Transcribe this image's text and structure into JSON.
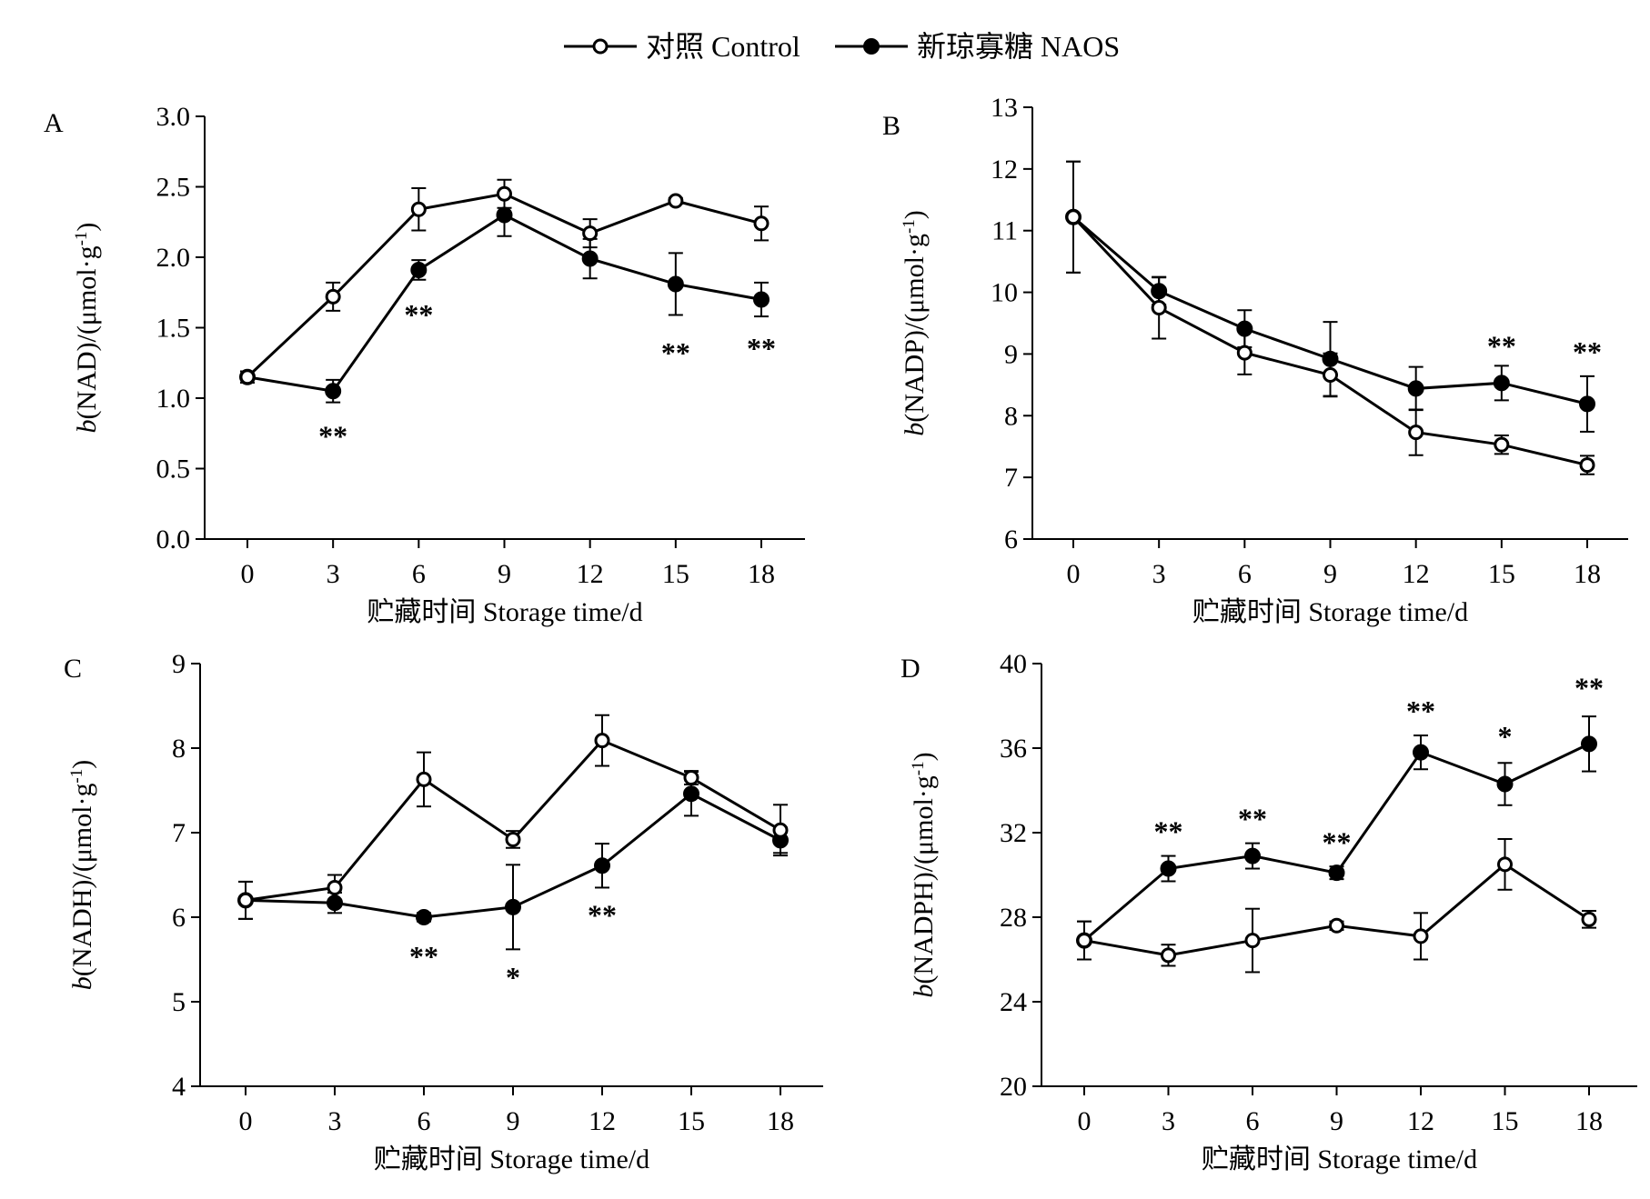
{
  "legend": {
    "control": "对照 Control",
    "naos": "新琼寡糖 NAOS"
  },
  "chart_data": [
    {
      "type": "line",
      "panel": "A",
      "xlabel": "贮藏时间 Storage time/d",
      "ylabel_prefix": "b",
      "ylabel_body": "(NAD)/(μmol·g",
      "ylabel_sup": "-1",
      "ylabel_suffix": ")",
      "ylim": [
        0,
        3
      ],
      "yticks": [
        "0.0",
        "0.5",
        "1.0",
        "1.5",
        "2.0",
        "2.5",
        "3.0"
      ],
      "x": [
        0,
        3,
        6,
        9,
        12,
        15,
        18
      ],
      "series": [
        {
          "name": "对照 Control",
          "marker": "open",
          "values": [
            1.15,
            1.72,
            2.34,
            2.45,
            2.17,
            2.4,
            2.24
          ],
          "errors": [
            0.04,
            0.1,
            0.15,
            0.1,
            0.1,
            0.02,
            0.12
          ]
        },
        {
          "name": "新琼寡糖 NAOS",
          "marker": "filled",
          "values": [
            1.15,
            1.05,
            1.91,
            2.3,
            1.99,
            1.81,
            1.7
          ],
          "errors": [
            0.04,
            0.08,
            0.07,
            0.15,
            0.14,
            0.22,
            0.12
          ]
        }
      ],
      "significance": [
        {
          "x": 3,
          "label": "**",
          "y": 0.74
        },
        {
          "x": 6,
          "label": "**",
          "y": 1.6
        },
        {
          "x": 15,
          "label": "**",
          "y": 1.33
        },
        {
          "x": 18,
          "label": "**",
          "y": 1.36
        }
      ]
    },
    {
      "type": "line",
      "panel": "B",
      "xlabel": "贮藏时间 Storage time/d",
      "ylabel_prefix": "b",
      "ylabel_body": "(NADP)/(μmol·g",
      "ylabel_sup": "-1",
      "ylabel_suffix": ")",
      "ylim": [
        6,
        13
      ],
      "yticks": [
        "6",
        "7",
        "8",
        "9",
        "10",
        "11",
        "12",
        "13"
      ],
      "x": [
        0,
        3,
        6,
        9,
        12,
        15,
        18
      ],
      "series": [
        {
          "name": "对照 Control",
          "marker": "open",
          "values": [
            11.22,
            9.75,
            9.02,
            8.66,
            7.73,
            7.53,
            7.2
          ],
          "errors": [
            0.9,
            0.5,
            0.35,
            0.35,
            0.37,
            0.15,
            0.15
          ]
        },
        {
          "name": "新琼寡糖 NAOS",
          "marker": "filled",
          "values": [
            11.22,
            10.02,
            9.41,
            8.92,
            8.44,
            8.53,
            8.19
          ],
          "errors": [
            0.9,
            0.22,
            0.3,
            0.6,
            0.35,
            0.28,
            0.45
          ]
        }
      ],
      "significance": [
        {
          "x": 15,
          "label": "**",
          "y": 9.15
        },
        {
          "x": 18,
          "label": "**",
          "y": 9.05
        }
      ]
    },
    {
      "type": "line",
      "panel": "C",
      "xlabel": "贮藏时间 Storage time/d",
      "ylabel_prefix": "b",
      "ylabel_body": "(NADH)/(μmol·g",
      "ylabel_sup": "-1",
      "ylabel_suffix": ")",
      "ylim": [
        4,
        9
      ],
      "yticks": [
        "4",
        "5",
        "6",
        "7",
        "8",
        "9"
      ],
      "x": [
        0,
        3,
        6,
        9,
        12,
        15,
        18
      ],
      "series": [
        {
          "name": "对照 Control",
          "marker": "open",
          "values": [
            6.2,
            6.35,
            7.63,
            6.92,
            8.09,
            7.65,
            7.03
          ],
          "errors": [
            0.22,
            0.15,
            0.32,
            0.1,
            0.3,
            0.08,
            0.3
          ]
        },
        {
          "name": "新琼寡糖 NAOS",
          "marker": "filled",
          "values": [
            6.2,
            6.17,
            6.0,
            6.12,
            6.61,
            7.46,
            6.91
          ],
          "errors": [
            0.22,
            0.12,
            0.05,
            0.5,
            0.26,
            0.26,
            0.15
          ]
        }
      ],
      "significance": [
        {
          "x": 6,
          "label": "**",
          "y": 5.55
        },
        {
          "x": 9,
          "label": "*",
          "y": 5.3
        },
        {
          "x": 12,
          "label": "**",
          "y": 6.04
        }
      ]
    },
    {
      "type": "line",
      "panel": "D",
      "xlabel": "贮藏时间 Storage time/d",
      "ylabel_prefix": "b",
      "ylabel_body": "(NADPH)/(μmol·g",
      "ylabel_sup": "-1",
      "ylabel_suffix": ")",
      "ylim": [
        20,
        40
      ],
      "yticks": [
        "20",
        "24",
        "28",
        "32",
        "36",
        "40"
      ],
      "x": [
        0,
        3,
        6,
        9,
        12,
        15,
        18
      ],
      "series": [
        {
          "name": "对照 Control",
          "marker": "open",
          "values": [
            26.9,
            26.2,
            26.9,
            27.6,
            27.1,
            30.5,
            27.9
          ],
          "errors": [
            0.9,
            0.5,
            1.5,
            0.2,
            1.1,
            1.2,
            0.4
          ]
        },
        {
          "name": "新琼寡糖 NAOS",
          "marker": "filled",
          "values": [
            26.9,
            30.3,
            30.9,
            30.1,
            35.8,
            34.3,
            36.2
          ],
          "errors": [
            0.9,
            0.6,
            0.6,
            0.3,
            0.8,
            1.0,
            1.3
          ]
        }
      ],
      "significance": [
        {
          "x": 3,
          "label": "**",
          "y": 32.1
        },
        {
          "x": 6,
          "label": "**",
          "y": 32.7
        },
        {
          "x": 9,
          "label": "**",
          "y": 31.6
        },
        {
          "x": 12,
          "label": "**",
          "y": 37.8
        },
        {
          "x": 15,
          "label": "*",
          "y": 36.6
        },
        {
          "x": 18,
          "label": "**",
          "y": 38.9
        }
      ]
    }
  ]
}
